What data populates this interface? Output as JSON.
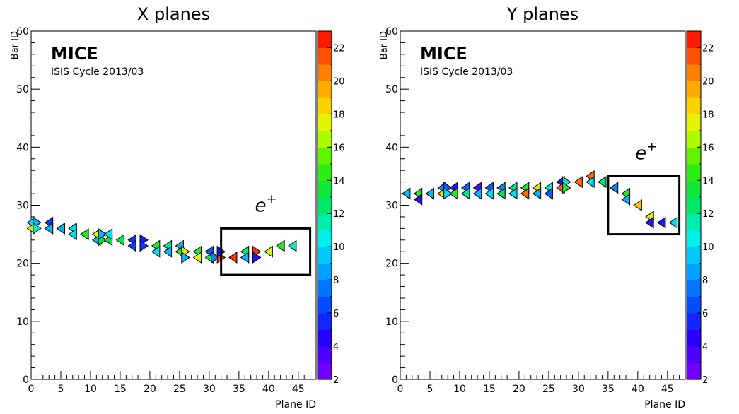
{
  "chart_data": [
    {
      "type": "scatter",
      "title": "X planes",
      "xlabel": "Plane ID",
      "ylabel": "Bar ID",
      "xlim": [
        0,
        48
      ],
      "ylim": [
        0,
        60
      ],
      "xticks": [
        0,
        5,
        10,
        15,
        20,
        25,
        30,
        35,
        40,
        45
      ],
      "yticks": [
        0,
        10,
        20,
        30,
        40,
        50,
        60
      ],
      "colorbar": {
        "min": 2,
        "max": 23,
        "ticks": [
          2,
          4,
          6,
          8,
          10,
          12,
          14,
          16,
          18,
          20,
          22
        ]
      },
      "experiment_label": "MICE",
      "cycle_label": "ISIS Cycle 2013/03",
      "annotation": {
        "text": "e",
        "superscript": "+"
      },
      "box": {
        "x": [
          32,
          47
        ],
        "y": [
          18,
          26
        ]
      },
      "series": [
        {
          "values": [
            {
              "x": 0,
              "y": 27,
              "dir": "L",
              "c": 10
            },
            {
              "x": 0,
              "y": 26,
              "dir": "L",
              "c": 18
            },
            {
              "x": 1,
              "y": 27,
              "dir": "R",
              "c": 9
            },
            {
              "x": 1,
              "y": 26,
              "dir": "R",
              "c": 11
            },
            {
              "x": 3,
              "y": 27,
              "dir": "L",
              "c": 6
            },
            {
              "x": 3,
              "y": 26,
              "dir": "L",
              "c": 9
            },
            {
              "x": 5,
              "y": 26,
              "dir": "L",
              "c": 9
            },
            {
              "x": 7,
              "y": 26,
              "dir": "L",
              "c": 10
            },
            {
              "x": 7,
              "y": 25,
              "dir": "L",
              "c": 10
            },
            {
              "x": 9,
              "y": 25,
              "dir": "L",
              "c": 14
            },
            {
              "x": 11,
              "y": 25,
              "dir": "L",
              "c": 17
            },
            {
              "x": 11,
              "y": 24,
              "dir": "L",
              "c": 9
            },
            {
              "x": 12,
              "y": 24,
              "dir": "R",
              "c": 13
            },
            {
              "x": 12,
              "y": 25,
              "dir": "R",
              "c": 9
            },
            {
              "x": 13,
              "y": 24,
              "dir": "L",
              "c": 13
            },
            {
              "x": 13,
              "y": 25,
              "dir": "L",
              "c": 10
            },
            {
              "x": 15,
              "y": 24,
              "dir": "L",
              "c": 13
            },
            {
              "x": 17,
              "y": 24,
              "dir": "L",
              "c": 6
            },
            {
              "x": 17,
              "y": 23,
              "dir": "L",
              "c": 6
            },
            {
              "x": 19,
              "y": 24,
              "dir": "R",
              "c": 5
            },
            {
              "x": 19,
              "y": 23,
              "dir": "R",
              "c": 6
            },
            {
              "x": 21,
              "y": 23,
              "dir": "L",
              "c": 14
            },
            {
              "x": 21,
              "y": 22,
              "dir": "L",
              "c": 10
            },
            {
              "x": 23,
              "y": 23,
              "dir": "L",
              "c": 12
            },
            {
              "x": 23,
              "y": 22,
              "dir": "L",
              "c": 9
            },
            {
              "x": 25,
              "y": 23,
              "dir": "L",
              "c": 9
            },
            {
              "x": 25,
              "y": 22,
              "dir": "L",
              "c": 14
            },
            {
              "x": 26,
              "y": 22,
              "dir": "R",
              "c": 18
            },
            {
              "x": 26,
              "y": 21,
              "dir": "R",
              "c": 9
            },
            {
              "x": 28,
              "y": 22,
              "dir": "L",
              "c": 14
            },
            {
              "x": 28,
              "y": 21,
              "dir": "L",
              "c": 17
            },
            {
              "x": 30,
              "y": 21,
              "dir": "L",
              "c": 14
            },
            {
              "x": 30,
              "y": 22,
              "dir": "L",
              "c": 7
            },
            {
              "x": 31,
              "y": 21,
              "dir": "R",
              "c": 8
            },
            {
              "x": 32,
              "y": 21,
              "dir": "R",
              "c": 22
            },
            {
              "x": 32,
              "y": 22,
              "dir": "R",
              "c": 5
            },
            {
              "x": 34,
              "y": 21,
              "dir": "L",
              "c": 22
            },
            {
              "x": 36,
              "y": 22,
              "dir": "L",
              "c": 12
            },
            {
              "x": 36,
              "y": 21,
              "dir": "L",
              "c": 9
            },
            {
              "x": 38,
              "y": 22,
              "dir": "R",
              "c": 22
            },
            {
              "x": 38,
              "y": 21,
              "dir": "R",
              "c": 5
            },
            {
              "x": 40,
              "y": 22,
              "dir": "L",
              "c": 17
            },
            {
              "x": 42,
              "y": 23,
              "dir": "L",
              "c": 14
            },
            {
              "x": 44,
              "y": 23,
              "dir": "L",
              "c": 11
            }
          ]
        }
      ]
    },
    {
      "type": "scatter",
      "title": "Y planes",
      "xlabel": "Plane ID",
      "ylabel": "Bar ID",
      "xlim": [
        0,
        48
      ],
      "ylim": [
        0,
        60
      ],
      "xticks": [
        0,
        5,
        10,
        15,
        20,
        25,
        30,
        35,
        40,
        45
      ],
      "yticks": [
        0,
        10,
        20,
        30,
        40,
        50,
        60
      ],
      "colorbar": {
        "min": 2,
        "max": 23,
        "ticks": [
          2,
          4,
          6,
          8,
          10,
          12,
          14,
          16,
          18,
          20,
          22
        ]
      },
      "experiment_label": "MICE",
      "cycle_label": "ISIS Cycle 2013/03",
      "annotation": {
        "text": "e",
        "superscript": "+"
      },
      "box": {
        "x": [
          35,
          47
        ],
        "y": [
          25,
          35
        ]
      },
      "series": [
        {
          "values": [
            {
              "x": 1,
              "y": 32,
              "dir": "L",
              "c": 9
            },
            {
              "x": 3,
              "y": 32,
              "dir": "L",
              "c": 14
            },
            {
              "x": 3,
              "y": 31,
              "dir": "L",
              "c": 4
            },
            {
              "x": 5,
              "y": 32,
              "dir": "L",
              "c": 9
            },
            {
              "x": 7,
              "y": 33,
              "dir": "L",
              "c": 8
            },
            {
              "x": 7,
              "y": 32,
              "dir": "L",
              "c": 18
            },
            {
              "x": 8,
              "y": 33,
              "dir": "R",
              "c": 7
            },
            {
              "x": 8,
              "y": 32,
              "dir": "R",
              "c": 10
            },
            {
              "x": 9,
              "y": 33,
              "dir": "L",
              "c": 5
            },
            {
              "x": 9,
              "y": 32,
              "dir": "L",
              "c": 14
            },
            {
              "x": 11,
              "y": 33,
              "dir": "L",
              "c": 7
            },
            {
              "x": 11,
              "y": 32,
              "dir": "L",
              "c": 12
            },
            {
              "x": 13,
              "y": 33,
              "dir": "L",
              "c": 3
            },
            {
              "x": 13,
              "y": 32,
              "dir": "L",
              "c": 9
            },
            {
              "x": 15,
              "y": 33,
              "dir": "L",
              "c": 7
            },
            {
              "x": 15,
              "y": 32,
              "dir": "L",
              "c": 10
            },
            {
              "x": 17,
              "y": 33,
              "dir": "L",
              "c": 8
            },
            {
              "x": 17,
              "y": 32,
              "dir": "L",
              "c": 13
            },
            {
              "x": 19,
              "y": 33,
              "dir": "L",
              "c": 12
            },
            {
              "x": 19,
              "y": 32,
              "dir": "L",
              "c": 10
            },
            {
              "x": 21,
              "y": 33,
              "dir": "L",
              "c": 14
            },
            {
              "x": 21,
              "y": 32,
              "dir": "L",
              "c": 21
            },
            {
              "x": 23,
              "y": 33,
              "dir": "L",
              "c": 18
            },
            {
              "x": 23,
              "y": 32,
              "dir": "L",
              "c": 9
            },
            {
              "x": 25,
              "y": 33,
              "dir": "L",
              "c": 11
            },
            {
              "x": 25,
              "y": 32,
              "dir": "L",
              "c": 7
            },
            {
              "x": 27,
              "y": 34,
              "dir": "L",
              "c": 5
            },
            {
              "x": 27,
              "y": 33,
              "dir": "L",
              "c": 21
            },
            {
              "x": 28,
              "y": 34,
              "dir": "R",
              "c": 11
            },
            {
              "x": 28,
              "y": 33,
              "dir": "R",
              "c": 14
            },
            {
              "x": 30,
              "y": 34,
              "dir": "L",
              "c": 21
            },
            {
              "x": 32,
              "y": 35,
              "dir": "L",
              "c": 21
            },
            {
              "x": 32,
              "y": 34,
              "dir": "L",
              "c": 10
            },
            {
              "x": 34,
              "y": 34,
              "dir": "L",
              "c": 12
            },
            {
              "x": 36,
              "y": 33,
              "dir": "L",
              "c": 8
            },
            {
              "x": 38,
              "y": 32,
              "dir": "L",
              "c": 14
            },
            {
              "x": 38,
              "y": 31,
              "dir": "L",
              "c": 9
            },
            {
              "x": 40,
              "y": 30,
              "dir": "L",
              "c": 19
            },
            {
              "x": 42,
              "y": 28,
              "dir": "L",
              "c": 18
            },
            {
              "x": 42,
              "y": 27,
              "dir": "L",
              "c": 5
            },
            {
              "x": 44,
              "y": 27,
              "dir": "L",
              "c": 5
            },
            {
              "x": 46,
              "y": 27,
              "dir": "L",
              "c": 10
            }
          ]
        }
      ]
    }
  ]
}
